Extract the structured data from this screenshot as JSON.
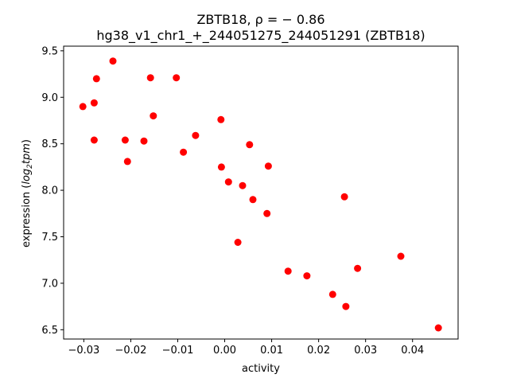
{
  "chart_data": {
    "type": "scatter",
    "title_line1": "ZBTB18, ρ = − 0.86",
    "title_line2": "hg38_v1_chr1_+_244051275_244051291 (ZBTB18)",
    "xlabel": "activity",
    "ylabel_prefix": "expression (",
    "ylabel_log": "log",
    "ylabel_sub": "2",
    "ylabel_tpm": "tpm",
    "ylabel_suffix": ")",
    "xlim": [
      -0.0343,
      0.0497
    ],
    "ylim": [
      6.4,
      9.55
    ],
    "xticks": [
      -0.03,
      -0.02,
      -0.01,
      0.0,
      0.01,
      0.02,
      0.03,
      0.04
    ],
    "xtick_labels": [
      "−0.03",
      "−0.02",
      "−0.01",
      "0.00",
      "0.01",
      "0.02",
      "0.03",
      "0.04"
    ],
    "yticks": [
      6.5,
      7.0,
      7.5,
      8.0,
      8.5,
      9.0,
      9.5
    ],
    "ytick_labels": [
      "6.5",
      "7.0",
      "7.5",
      "8.0",
      "8.5",
      "9.0",
      "9.5"
    ],
    "marker_color": "#ff0000",
    "points": [
      {
        "x": -0.0302,
        "y": 8.9
      },
      {
        "x": -0.0278,
        "y": 8.94
      },
      {
        "x": -0.0273,
        "y": 9.2
      },
      {
        "x": -0.0278,
        "y": 8.54
      },
      {
        "x": -0.0238,
        "y": 9.39
      },
      {
        "x": -0.0212,
        "y": 8.54
      },
      {
        "x": -0.0207,
        "y": 8.31
      },
      {
        "x": -0.0172,
        "y": 8.53
      },
      {
        "x": -0.0158,
        "y": 9.21
      },
      {
        "x": -0.0152,
        "y": 8.8
      },
      {
        "x": -0.0103,
        "y": 9.21
      },
      {
        "x": -0.0088,
        "y": 8.41
      },
      {
        "x": -0.0062,
        "y": 8.59
      },
      {
        "x": -0.0008,
        "y": 8.76
      },
      {
        "x": -0.0007,
        "y": 8.25
      },
      {
        "x": 0.0008,
        "y": 8.09
      },
      {
        "x": 0.0028,
        "y": 7.44
      },
      {
        "x": 0.0038,
        "y": 8.05
      },
      {
        "x": 0.0053,
        "y": 8.49
      },
      {
        "x": 0.006,
        "y": 7.9
      },
      {
        "x": 0.009,
        "y": 7.75
      },
      {
        "x": 0.0093,
        "y": 8.26
      },
      {
        "x": 0.0135,
        "y": 7.13
      },
      {
        "x": 0.0175,
        "y": 7.08
      },
      {
        "x": 0.023,
        "y": 6.88
      },
      {
        "x": 0.0255,
        "y": 7.93
      },
      {
        "x": 0.0258,
        "y": 6.75
      },
      {
        "x": 0.0283,
        "y": 7.16
      },
      {
        "x": 0.0375,
        "y": 7.29
      },
      {
        "x": 0.0455,
        "y": 6.52
      }
    ]
  }
}
